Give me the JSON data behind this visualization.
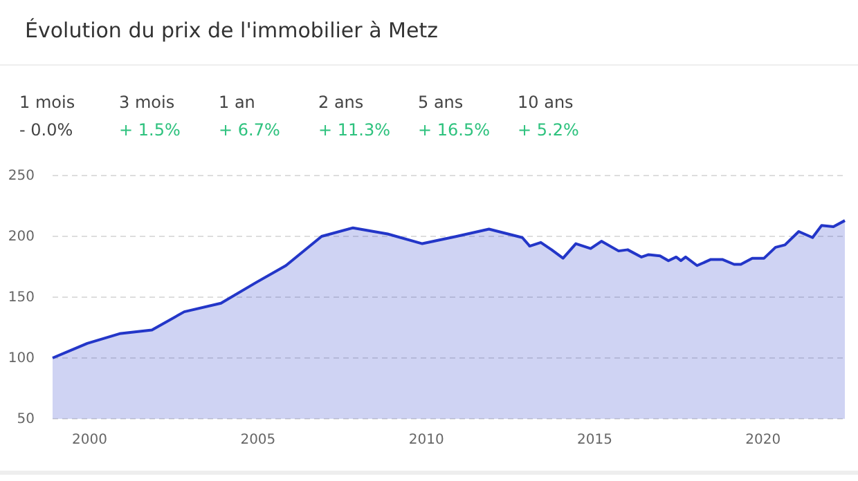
{
  "chart_data": {
    "type": "area",
    "title": "Évolution du prix de l'immobilier à Metz",
    "annotations": [
      "1 mois",
      "- 0.0%",
      "3 mois",
      "+ 1.5%",
      "1 an",
      "+ 6.7%",
      "2 ans",
      "+ 11.3%",
      "5 ans",
      "+ 16.5%",
      "10 ans",
      "+ 5.2%"
    ],
    "x": [
      1998.9,
      1999.93,
      2000.89,
      2001.85,
      2002.81,
      2003.9,
      2004.94,
      2005.83,
      2006.89,
      2007.82,
      2008.85,
      2009.88,
      2010.9,
      2011.86,
      2012.85,
      2013.07,
      2013.4,
      2013.72,
      2014.06,
      2014.44,
      2014.88,
      2015.2,
      2015.71,
      2015.98,
      2016.39,
      2016.6,
      2016.94,
      2017.19,
      2017.42,
      2017.56,
      2017.7,
      2018.04,
      2018.45,
      2018.79,
      2019.14,
      2019.34,
      2019.68,
      2020.03,
      2020.37,
      2020.65,
      2021.06,
      2021.47,
      2021.74,
      2022.09,
      2022.43
    ],
    "series": [
      {
        "color": "#2336c8",
        "values": [
          100,
          112,
          120,
          123,
          138,
          145,
          162,
          176,
          200,
          207,
          202,
          194,
          200,
          206,
          199,
          192,
          195,
          189,
          182,
          194,
          190,
          196,
          188,
          189,
          183,
          185,
          184,
          180,
          183,
          180,
          183,
          176,
          181,
          181,
          177,
          177,
          182,
          182,
          191,
          193,
          204,
          199,
          209,
          208,
          213
        ]
      }
    ],
    "xlim": [
      1998.9,
      2022.45
    ],
    "xticks": [
      2000,
      2005,
      2010,
      2015,
      2020
    ],
    "ylim": [
      50,
      250
    ],
    "yticks": [
      50,
      100,
      150,
      200,
      250
    ],
    "grid": "y"
  }
}
